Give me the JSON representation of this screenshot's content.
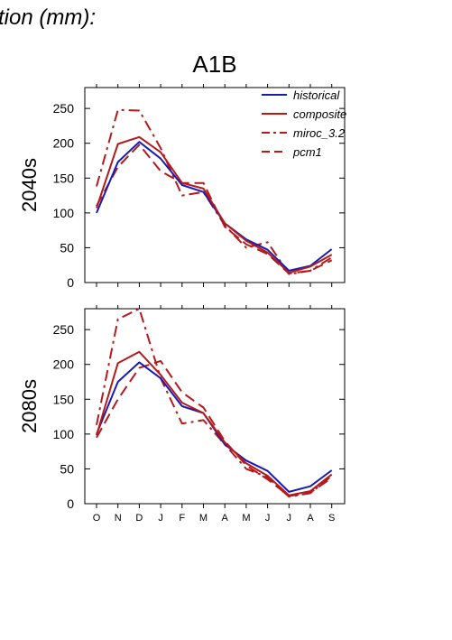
{
  "header": {
    "title": "tion (mm):"
  },
  "chart_data": [
    {
      "type": "line",
      "title": "A1B",
      "ylabel": "2040s",
      "categories": [
        "O",
        "N",
        "D",
        "J",
        "F",
        "M",
        "A",
        "M",
        "J",
        "J",
        "A",
        "S"
      ],
      "ylim": [
        0,
        280
      ],
      "yticks": [
        0,
        50,
        100,
        150,
        200,
        250
      ],
      "legend": "top-right",
      "series": [
        {
          "name": "historical",
          "color": "#1a1ab4",
          "style": "solid",
          "values": [
            100,
            173,
            202,
            178,
            140,
            130,
            85,
            62,
            47,
            17,
            24,
            48
          ]
        },
        {
          "name": "composite",
          "color": "#b41a1a",
          "style": "solid",
          "values": [
            107,
            199,
            209,
            187,
            143,
            135,
            85,
            60,
            43,
            14,
            23,
            40
          ]
        },
        {
          "name": "miroc_3.2",
          "color": "#b41a1a",
          "style": "dashdot",
          "values": [
            138,
            248,
            247,
            193,
            125,
            130,
            82,
            50,
            58,
            12,
            17,
            36
          ]
        },
        {
          "name": "pcm1",
          "color": "#b41a1a",
          "style": "dashed",
          "values": [
            110,
            166,
            198,
            160,
            143,
            143,
            80,
            55,
            41,
            13,
            17,
            32
          ]
        }
      ]
    },
    {
      "type": "line",
      "title": "",
      "ylabel": "2080s",
      "categories": [
        "O",
        "N",
        "D",
        "J",
        "F",
        "M",
        "A",
        "M",
        "J",
        "J",
        "A",
        "S"
      ],
      "ylim": [
        0,
        280
      ],
      "yticks": [
        0,
        50,
        100,
        150,
        200,
        250
      ],
      "series": [
        {
          "name": "historical",
          "color": "#1a1ab4",
          "style": "solid",
          "values": [
            100,
            175,
            203,
            180,
            140,
            130,
            85,
            62,
            47,
            17,
            25,
            48
          ]
        },
        {
          "name": "composite",
          "color": "#b41a1a",
          "style": "solid",
          "values": [
            98,
            202,
            218,
            185,
            145,
            130,
            88,
            58,
            40,
            12,
            18,
            42
          ]
        },
        {
          "name": "miroc_3.2",
          "color": "#b41a1a",
          "style": "dashdot",
          "values": [
            113,
            265,
            280,
            180,
            115,
            120,
            85,
            50,
            38,
            10,
            15,
            40
          ]
        },
        {
          "name": "pcm1",
          "color": "#b41a1a",
          "style": "dashed",
          "values": [
            95,
            150,
            195,
            205,
            160,
            138,
            90,
            55,
            35,
            11,
            16,
            37
          ]
        }
      ]
    }
  ]
}
